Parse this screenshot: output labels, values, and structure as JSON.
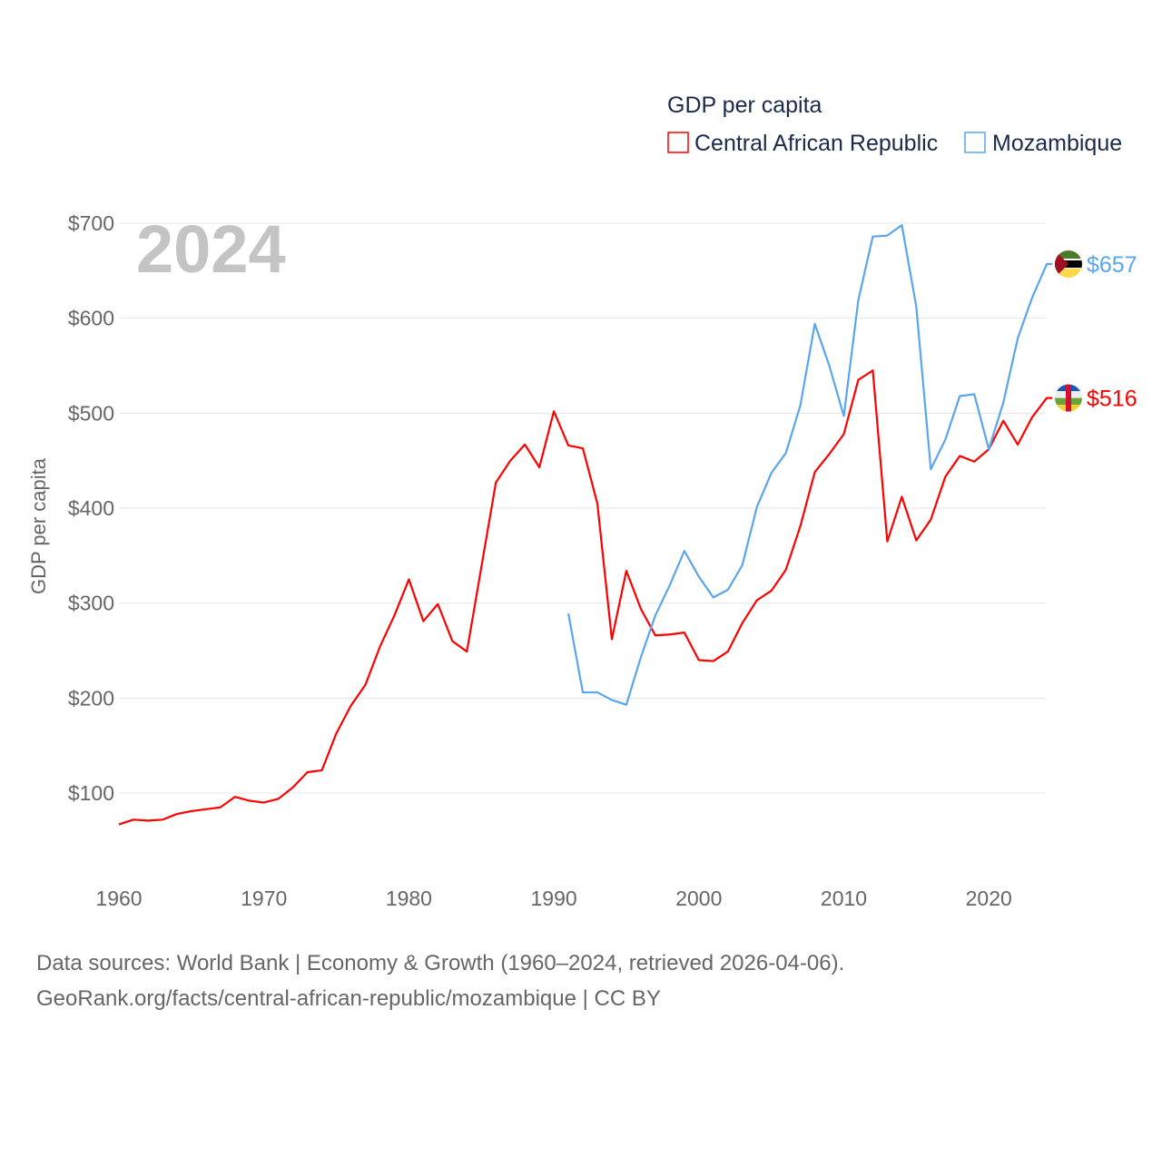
{
  "chart_data": {
    "type": "line",
    "title": "GDP per capita",
    "year_label": "2024",
    "xlabel": "",
    "ylabel": "GDP per capita",
    "xlim": [
      1960,
      2024
    ],
    "ylim": [
      18,
      700
    ],
    "grid": true,
    "legend_position": "top-right",
    "x_ticks": [
      1960,
      1970,
      1980,
      1990,
      2000,
      2010,
      2020
    ],
    "x_tick_labels": [
      "1960",
      "1970",
      "1980",
      "1990",
      "2000",
      "2010",
      "2020"
    ],
    "y_ticks": [
      100,
      200,
      300,
      400,
      500,
      600,
      700
    ],
    "y_tick_labels": [
      "$100",
      "$200",
      "$300",
      "$400",
      "$500",
      "$600",
      "$700"
    ],
    "series": [
      {
        "name": "Central African Republic",
        "color": "#ff0000",
        "end_label": "$516",
        "start_year": 1960,
        "values": [
          67,
          72,
          71,
          72,
          78,
          81,
          83,
          85,
          96,
          92,
          90,
          94,
          106,
          122,
          124,
          163,
          192,
          214,
          254,
          287,
          325,
          281,
          299,
          260,
          249,
          338,
          427,
          450,
          467,
          443,
          502,
          466,
          463,
          405,
          262,
          334,
          294,
          266,
          267,
          269,
          240,
          239,
          249,
          279,
          303,
          313,
          335,
          381,
          438,
          457,
          478,
          535,
          545,
          365,
          412,
          366,
          388,
          433,
          455,
          449,
          462,
          492,
          467,
          496,
          516
        ]
      },
      {
        "name": "Mozambique",
        "color": "#5aa6ee",
        "end_label": "$657",
        "start_year": 1991,
        "values": [
          289,
          206,
          206,
          198,
          193,
          243,
          287,
          319,
          355,
          328,
          306,
          314,
          340,
          401,
          437,
          458,
          508,
          594,
          550,
          497,
          619,
          686,
          687,
          698,
          612,
          441,
          472,
          518,
          520,
          462,
          511,
          579,
          622,
          657
        ]
      }
    ]
  },
  "footer": {
    "line1": "Data sources: World Bank | Economy & Growth (1960–2024, retrieved 2026-04-06).",
    "line2": "GeoRank.org/facts/central-african-republic/mozambique | CC BY"
  }
}
